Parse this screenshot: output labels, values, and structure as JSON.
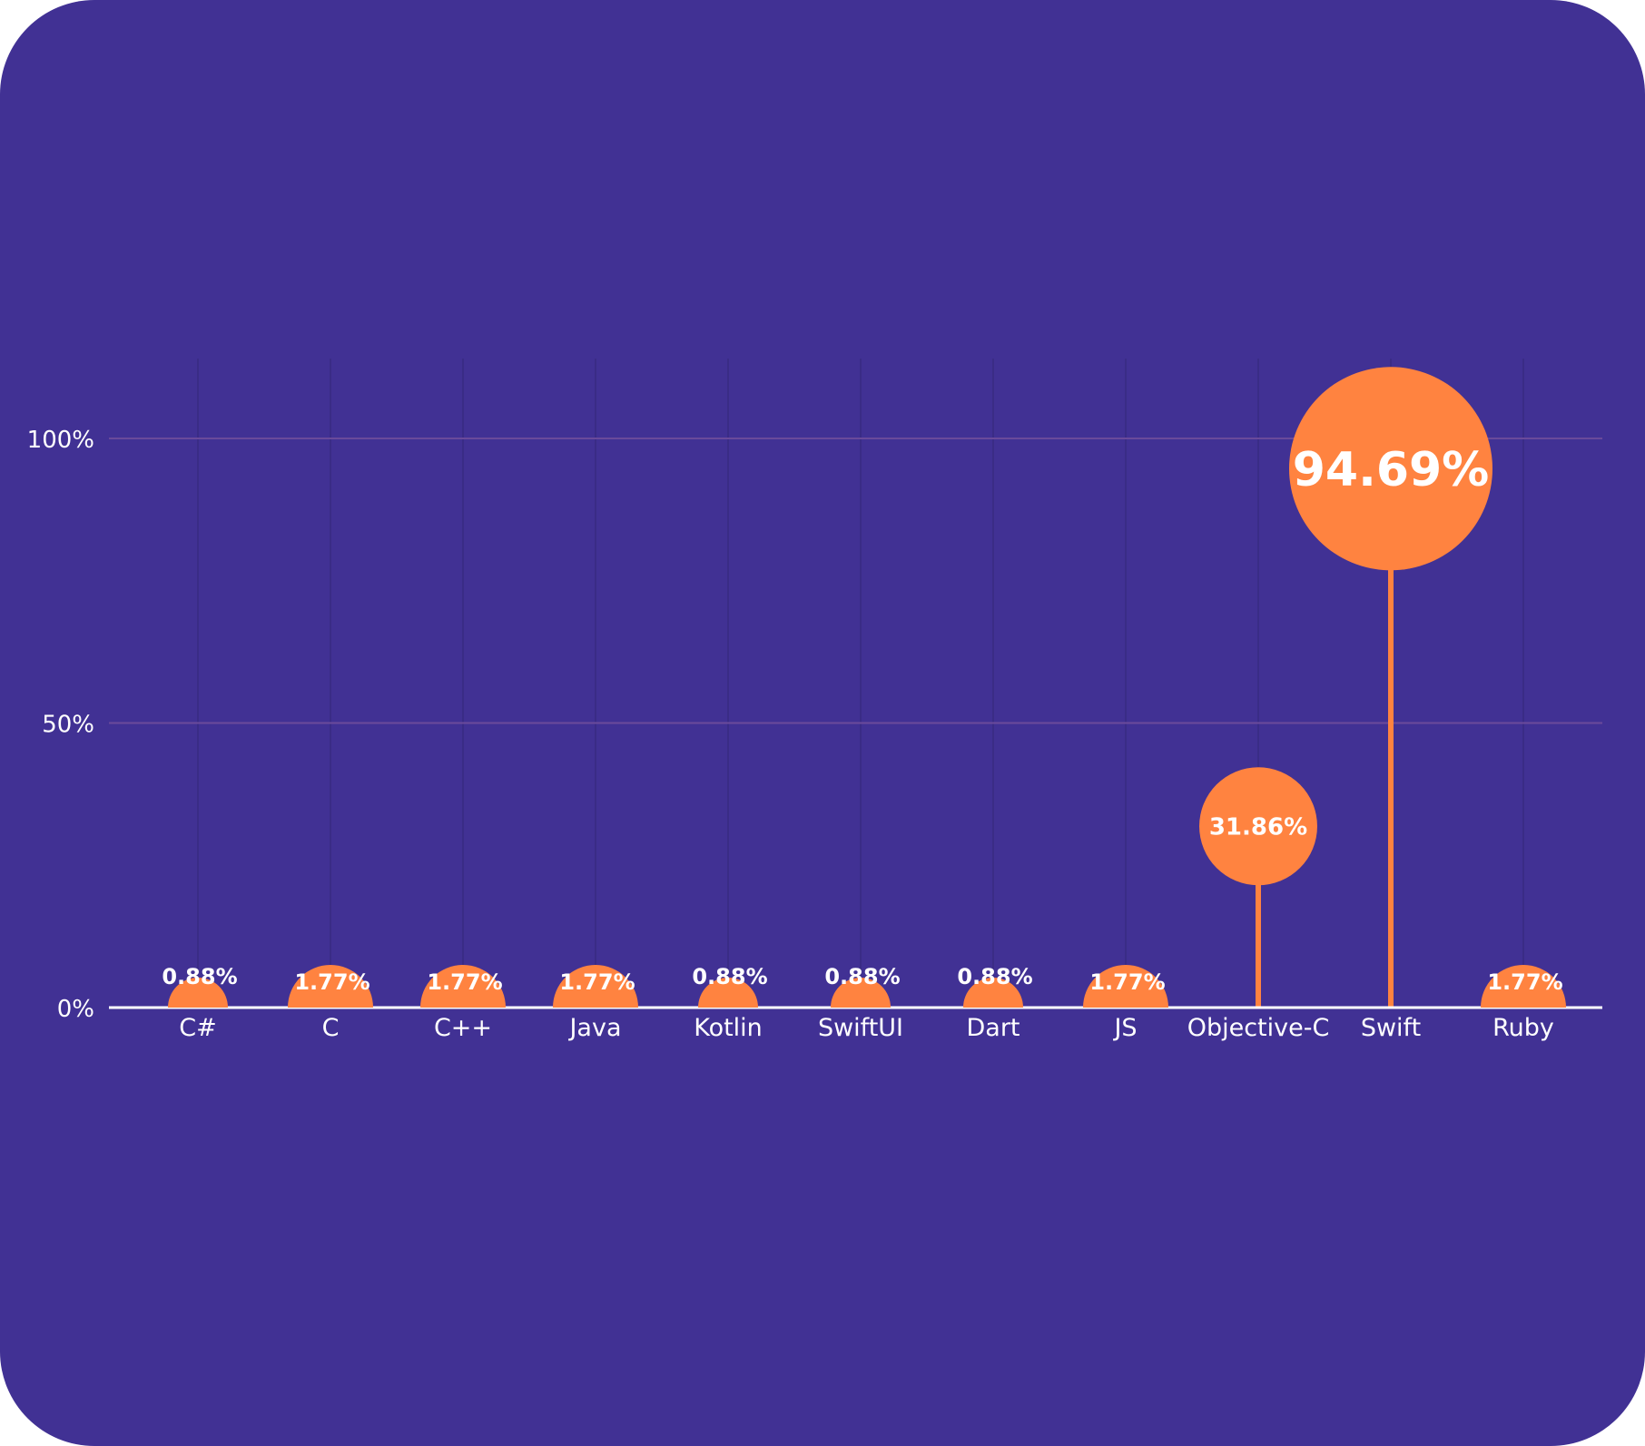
{
  "chart_data": {
    "type": "lollipop",
    "title": "",
    "xlabel": "",
    "ylabel": "",
    "ylim": [
      0,
      100
    ],
    "yticks": [
      {
        "value": 0,
        "label": "0%"
      },
      {
        "value": 50,
        "label": "50%"
      },
      {
        "value": 100,
        "label": "100%"
      }
    ],
    "categories": [
      "C#",
      "C",
      "C++",
      "Java",
      "Kotlin",
      "SwiftUI",
      "Dart",
      "JS",
      "Objective-C",
      "Swift",
      "Ruby"
    ],
    "values": [
      0.88,
      1.77,
      1.77,
      1.77,
      0.88,
      0.88,
      0.88,
      1.77,
      31.86,
      94.69,
      1.77
    ],
    "value_labels": [
      "0.88%",
      "1.77%",
      "1.77%",
      "1.77%",
      "0.88%",
      "0.88%",
      "0.88%",
      "1.77%",
      "31.86%",
      "94.69%",
      "1.77%"
    ],
    "grid": true,
    "legend": "none"
  },
  "colors": {
    "background": "#413194",
    "marker": "#FF8340",
    "text": "#FFFFFF",
    "axis": "#FFFFFF",
    "gridline": "#6A4A9A",
    "vertical_grid": "#3A2C86"
  }
}
